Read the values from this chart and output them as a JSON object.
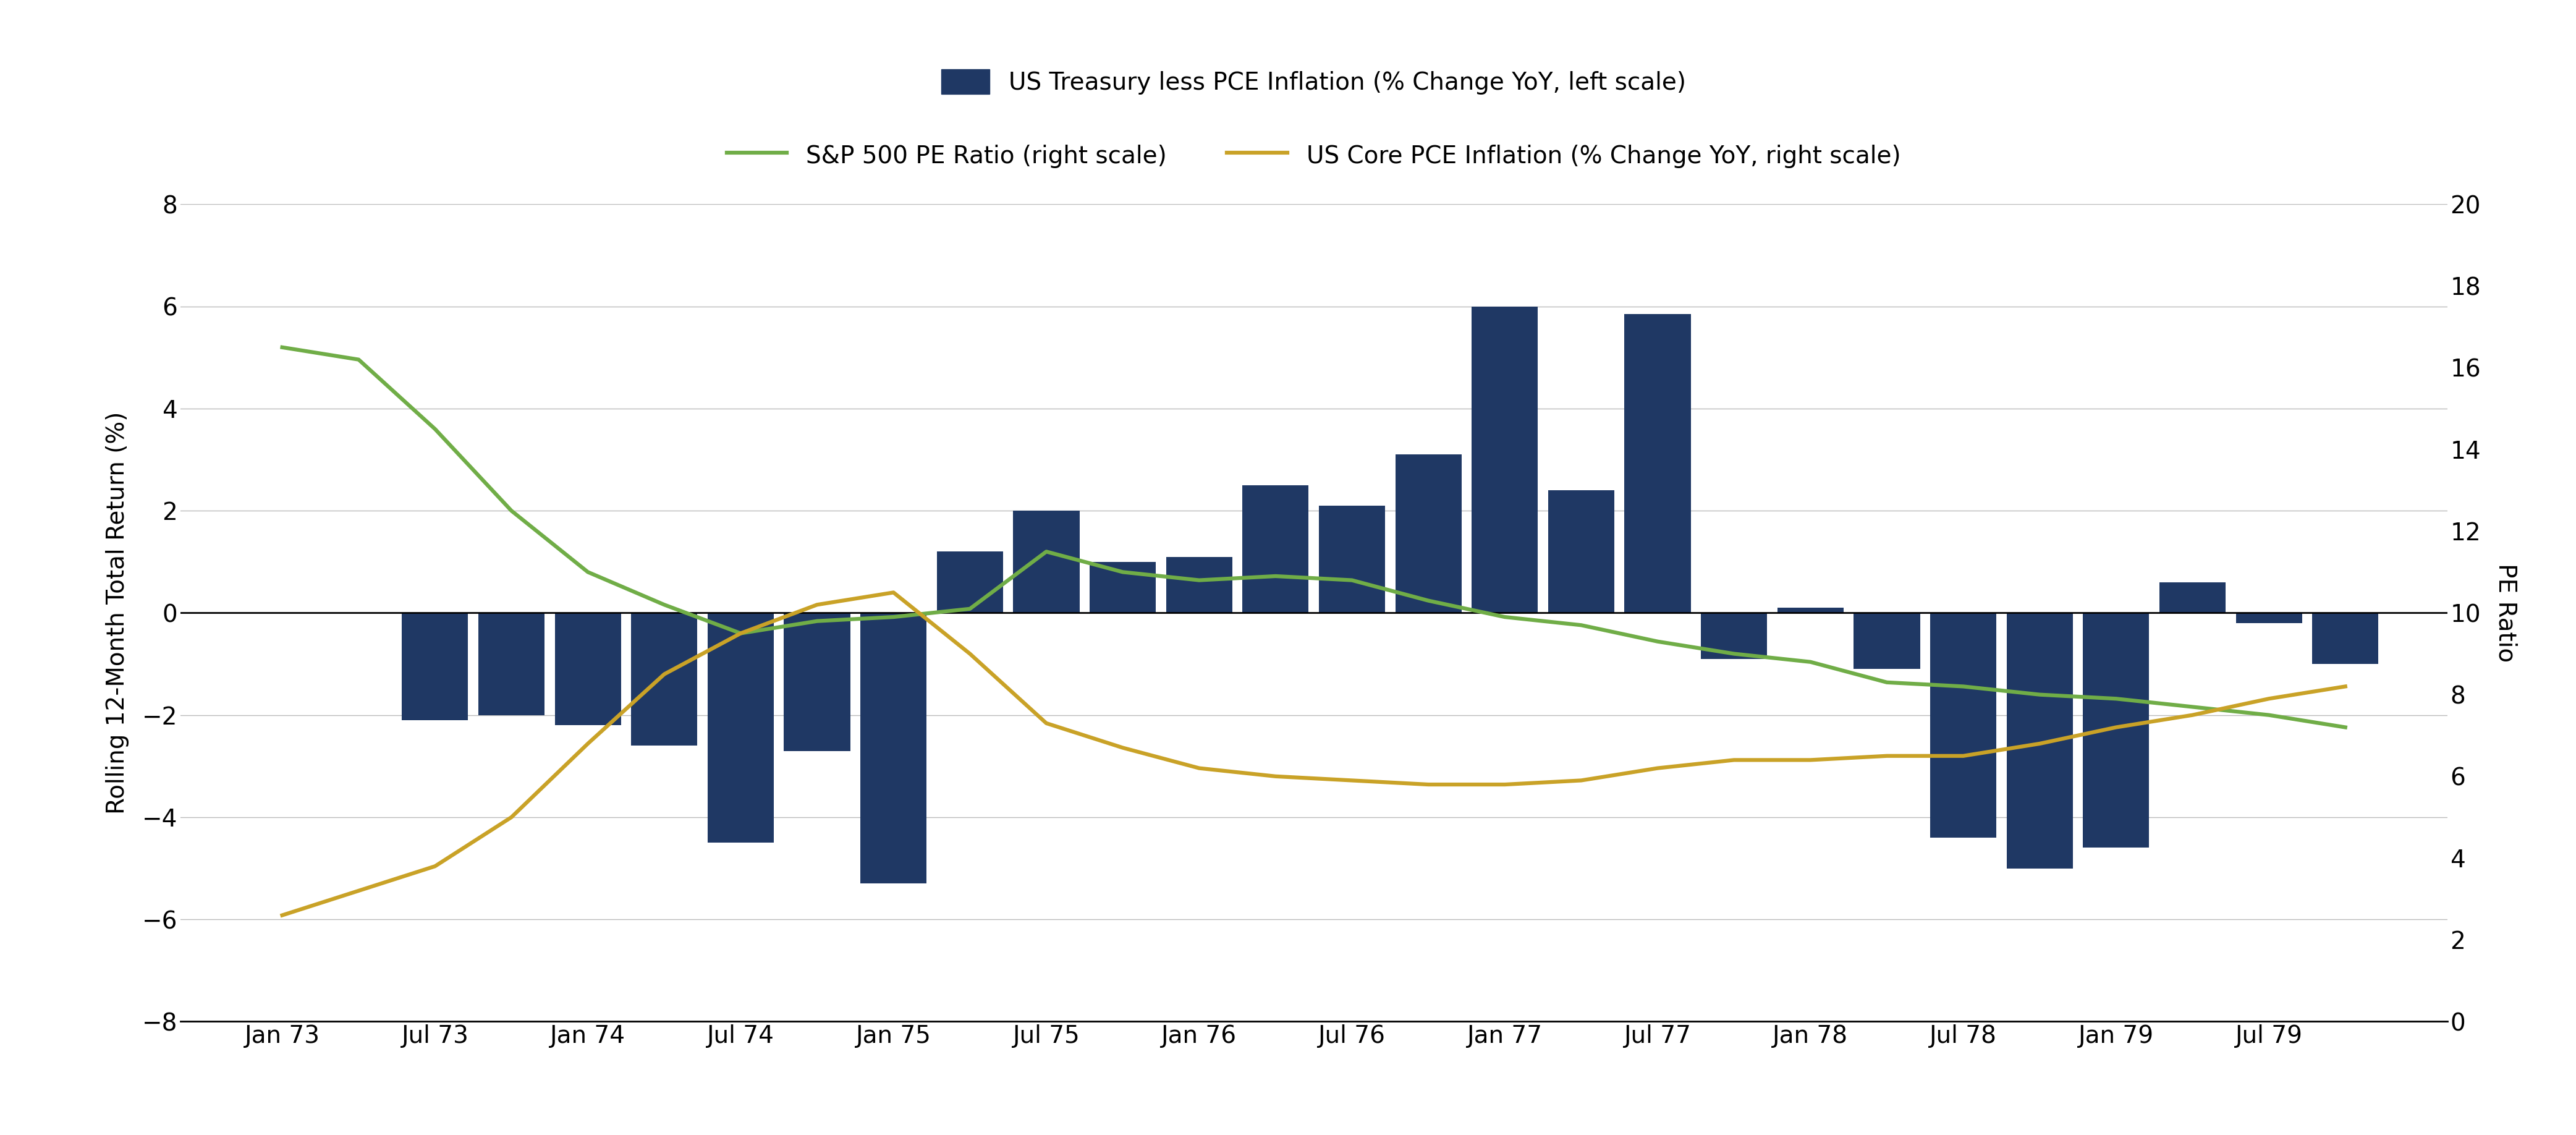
{
  "ylabel_left": "Rolling 12-Month Total Return (%)",
  "ylabel_right": "PE Ratio",
  "ylim_left": [
    -8,
    8
  ],
  "ylim_right": [
    0,
    20
  ],
  "yticks_left": [
    -8,
    -6,
    -4,
    -2,
    0,
    2,
    4,
    6,
    8
  ],
  "yticks_right": [
    0,
    2,
    4,
    6,
    8,
    10,
    12,
    14,
    16,
    18,
    20
  ],
  "bar_color": "#1f3864",
  "sp500_color": "#70ad47",
  "inflation_color": "#c9a227",
  "x_labels": [
    "Jan 73",
    "Jul 73",
    "Jan 74",
    "Jul 74",
    "Jan 75",
    "Jul 75",
    "Jan 76",
    "Jul 76",
    "Jan 77",
    "Jul 77",
    "Jan 78",
    "Jul 78",
    "Jan 79",
    "Jul 79"
  ],
  "bar_x_months": [
    0,
    3,
    6,
    9,
    12,
    15,
    18,
    21,
    24,
    27,
    30,
    33,
    36,
    39,
    42,
    45,
    48,
    51,
    54,
    57,
    60,
    63,
    66,
    69,
    72,
    75,
    78,
    81
  ],
  "bar_values": [
    0.0,
    0.0,
    -2.1,
    -2.0,
    -2.2,
    -2.6,
    -4.5,
    -2.7,
    -5.3,
    1.2,
    2.0,
    1.0,
    1.1,
    2.5,
    2.1,
    3.1,
    6.0,
    2.4,
    5.85,
    -0.9,
    0.1,
    -1.1,
    -4.4,
    -5.0,
    -4.6,
    0.6,
    -0.2,
    -1.0
  ],
  "sp500_x_months": [
    0,
    3,
    6,
    9,
    12,
    15,
    18,
    21,
    24,
    27,
    30,
    33,
    36,
    39,
    42,
    45,
    48,
    51,
    54,
    57,
    60,
    63,
    66,
    69,
    72,
    75,
    78,
    81
  ],
  "sp500_values": [
    16.5,
    16.2,
    14.5,
    12.5,
    11.0,
    10.2,
    9.5,
    9.8,
    9.9,
    10.1,
    11.5,
    11.0,
    10.8,
    10.9,
    10.8,
    10.3,
    9.9,
    9.7,
    9.3,
    9.0,
    8.8,
    8.3,
    8.2,
    8.0,
    7.9,
    7.7,
    7.5,
    7.2
  ],
  "pce_x_months": [
    0,
    3,
    6,
    9,
    12,
    15,
    18,
    21,
    24,
    27,
    30,
    33,
    36,
    39,
    42,
    45,
    48,
    51,
    54,
    57,
    60,
    63,
    66,
    69,
    72,
    75,
    78,
    81
  ],
  "pce_values": [
    2.6,
    3.2,
    3.8,
    5.0,
    6.8,
    8.5,
    9.5,
    10.2,
    10.5,
    9.0,
    7.3,
    6.7,
    6.2,
    6.0,
    5.9,
    5.8,
    5.8,
    5.9,
    6.2,
    6.4,
    6.4,
    6.5,
    6.5,
    6.8,
    7.2,
    7.5,
    7.9,
    8.2
  ],
  "legend_bar_label": "US Treasury less PCE Inflation (% Change YoY, left scale)",
  "legend_sp500_label": "S&P 500 PE Ratio (right scale)",
  "legend_inflation_label": "US Core PCE Inflation (% Change YoY, right scale)",
  "background_color": "#ffffff",
  "grid_color": "#bbbbbb",
  "label_fontsize": 28,
  "tick_fontsize": 28,
  "legend_fontsize": 28,
  "linewidth": 4.5,
  "bar_width": 2.6
}
